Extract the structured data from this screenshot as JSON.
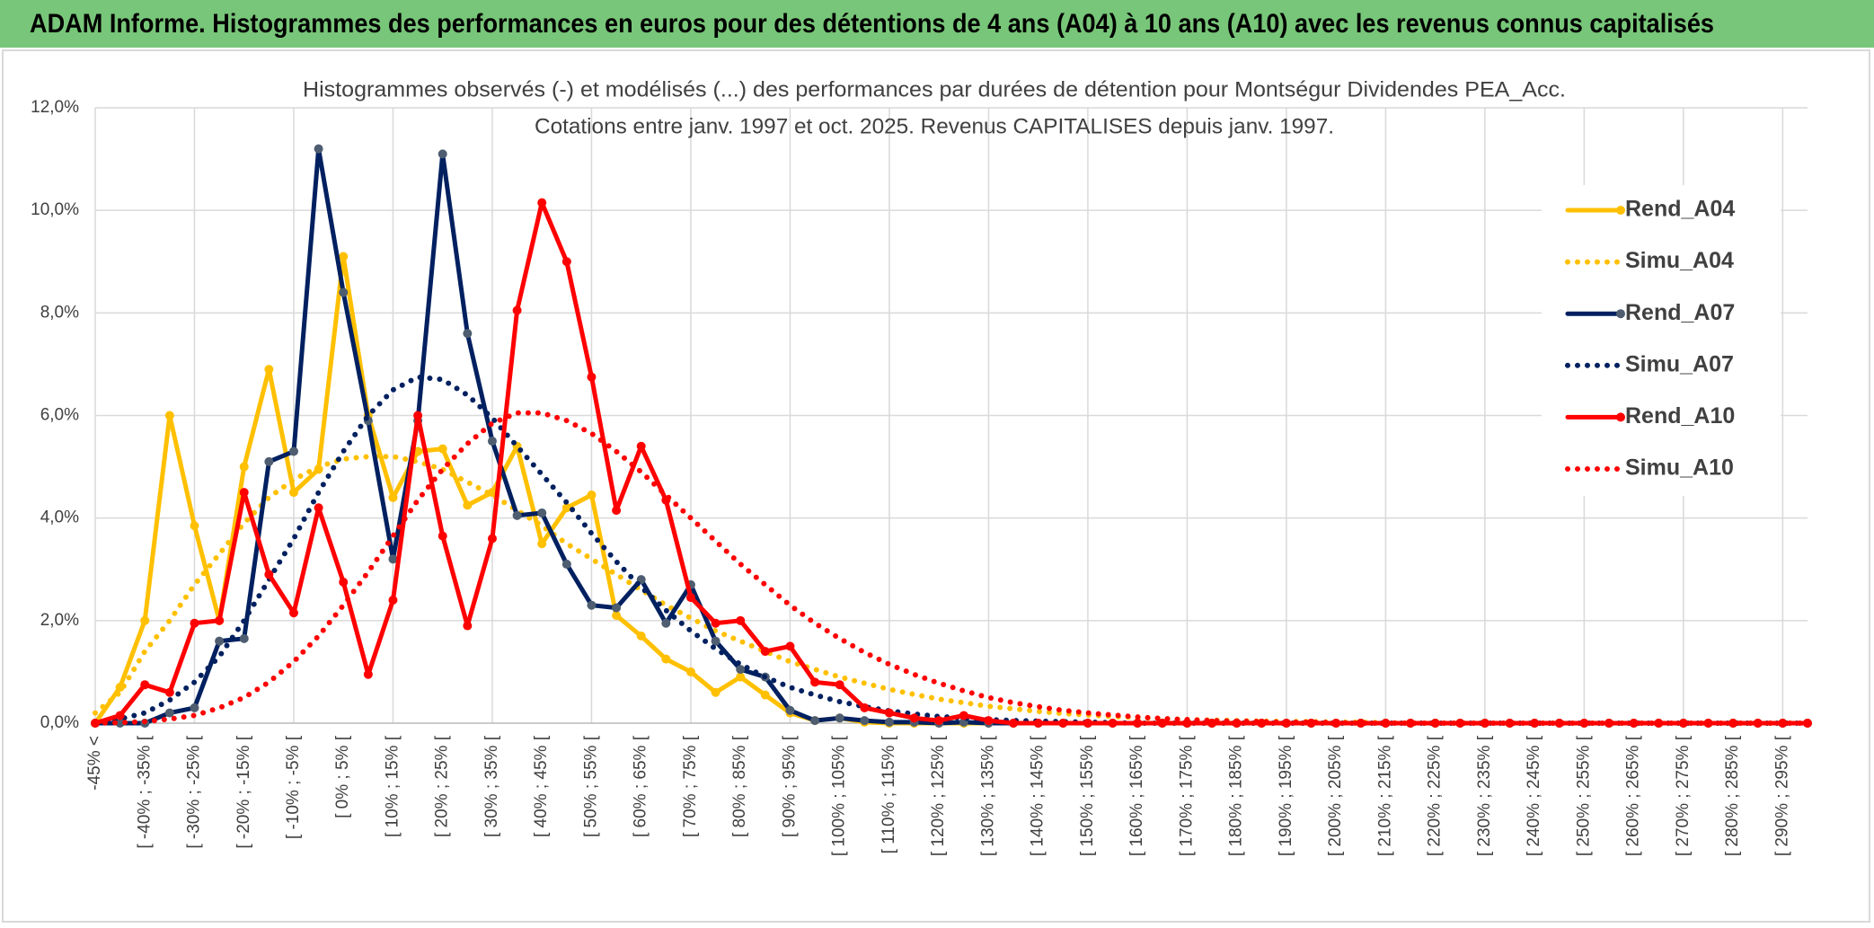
{
  "header": {
    "title": "ADAM Informe. Histogrammes des performances en euros pour des détentions de 4 ans (A04) à 10 ans (A10) avec les revenus connus capitalisés"
  },
  "chart_data": {
    "type": "line",
    "title": "Histogrammes observés (-) et modélisés (...) des performances par durées de détention pour Montségur Dividendes PEA_Acc.",
    "subtitle": "Cotations entre janv. 1997 et oct. 2025. Revenus CAPITALISES depuis janv. 1997.",
    "categories": [
      "-45% <",
      null,
      "[ -40% ; -35% [",
      null,
      "[ -30% ; -25% [",
      null,
      "[ -20% ; -15% [",
      null,
      "[ -10% ; -5% [",
      null,
      "[ 0% ; 5% [",
      null,
      "[ 10% ; 15% [",
      null,
      "[ 20% ; 25% [",
      null,
      "[ 30% ; 35% [",
      null,
      "[ 40% ; 45% [",
      null,
      "[ 50% ; 55% [",
      null,
      "[ 60% ; 65% [",
      null,
      "[ 70% ; 75% [",
      null,
      "[ 80% ; 85% [",
      null,
      "[ 90% ; 95% [",
      null,
      "[ 100% ; 105% [",
      null,
      "[ 110% ; 115% [",
      null,
      "[ 120% ; 125% [",
      null,
      "[ 130% ; 135% [",
      null,
      "[ 140% ; 145% [",
      null,
      "[ 150% ; 155% [",
      null,
      "[ 160% ; 165% [",
      null,
      "[ 170% ; 175% [",
      null,
      "[ 180% ; 185% [",
      null,
      "[ 190% ; 195% [",
      null,
      "[ 200% ; 205% [",
      null,
      "[ 210% ; 215% [",
      null,
      "[ 220% ; 225% [",
      null,
      "[ 230% ; 235% [",
      null,
      "[ 240% ; 245% [",
      null,
      "[ 250% ; 255% [",
      null,
      "[ 260% ; 265% [",
      null,
      "[ 270% ; 275% [",
      null,
      "[ 280% ; 285% [",
      null,
      "[ 290% ; 295% [",
      null
    ],
    "series": [
      {
        "name": "Rend_A04",
        "color": "#ffc000",
        "style": "solid",
        "marker": true,
        "marker_color": "#ffc000",
        "values": [
          0,
          0.7,
          2.0,
          6.0,
          3.85,
          2.0,
          5.0,
          6.9,
          4.5,
          4.95,
          9.1,
          6.0,
          4.4,
          5.3,
          5.35,
          4.25,
          4.5,
          5.4,
          3.5,
          4.2,
          4.45,
          2.1,
          1.7,
          1.25,
          1.0,
          0.6,
          0.9,
          0.55,
          0.2,
          0.05,
          0.1,
          0.02,
          0,
          0,
          0,
          0,
          0,
          0,
          0,
          0,
          0,
          0,
          0,
          0,
          0,
          0,
          0,
          0,
          0,
          0,
          0,
          0,
          0,
          0,
          0,
          0,
          0,
          0,
          0,
          0,
          0,
          0,
          0,
          0,
          0,
          0,
          0,
          0,
          0,
          0
        ]
      },
      {
        "name": "Simu_A04",
        "color": "#ffc000",
        "style": "dotted",
        "marker": false,
        "values": [
          0.2,
          0.6,
          1.4,
          2.0,
          2.7,
          3.3,
          3.9,
          4.4,
          4.75,
          5.0,
          5.15,
          5.2,
          5.2,
          5.1,
          4.95,
          4.7,
          4.45,
          4.15,
          3.85,
          3.5,
          3.2,
          2.9,
          2.6,
          2.3,
          2.05,
          1.8,
          1.6,
          1.4,
          1.2,
          1.05,
          0.9,
          0.78,
          0.66,
          0.56,
          0.47,
          0.4,
          0.33,
          0.28,
          0.23,
          0.19,
          0.16,
          0.13,
          0.11,
          0.09,
          0.07,
          0.06,
          0.05,
          0.04,
          0.03,
          0.03,
          0.02,
          0.02,
          0.01,
          0,
          0,
          0,
          0,
          0,
          0,
          0,
          0,
          0,
          0,
          0,
          0,
          0,
          0,
          0,
          0,
          0
        ]
      },
      {
        "name": "Rend_A07",
        "color": "#002060",
        "style": "solid",
        "marker": true,
        "marker_color": "#4e5d70",
        "values": [
          0,
          0,
          0,
          0.2,
          0.3,
          1.6,
          1.65,
          5.1,
          5.3,
          11.2,
          8.4,
          5.9,
          3.2,
          5.9,
          11.1,
          7.6,
          5.5,
          4.05,
          4.1,
          3.1,
          2.3,
          2.25,
          2.8,
          1.95,
          2.7,
          1.6,
          1.05,
          0.9,
          0.25,
          0.05,
          0.1,
          0.05,
          0.02,
          0.02,
          0,
          0.02,
          0,
          0,
          0,
          0,
          0,
          0,
          0,
          0,
          0,
          0,
          0,
          0,
          0,
          0,
          0,
          0,
          0,
          0,
          0,
          0,
          0,
          0,
          0,
          0,
          0,
          0,
          0,
          0,
          0,
          0,
          0,
          0,
          0,
          0
        ]
      },
      {
        "name": "Simu_A07",
        "color": "#002060",
        "style": "dotted",
        "marker": false,
        "values": [
          0.02,
          0.08,
          0.2,
          0.45,
          0.8,
          1.3,
          2.0,
          2.8,
          3.6,
          4.5,
          5.3,
          6.0,
          6.5,
          6.75,
          6.7,
          6.4,
          5.95,
          5.4,
          4.85,
          4.3,
          3.7,
          3.15,
          2.65,
          2.2,
          1.8,
          1.45,
          1.15,
          0.9,
          0.7,
          0.55,
          0.42,
          0.32,
          0.24,
          0.18,
          0.13,
          0.1,
          0.07,
          0.05,
          0.04,
          0.03,
          0.02,
          0.01,
          0,
          0,
          0,
          0,
          0,
          0,
          0,
          0,
          0,
          0,
          0,
          0,
          0,
          0,
          0,
          0,
          0,
          0,
          0,
          0,
          0,
          0,
          0,
          0,
          0,
          0,
          0,
          0
        ]
      },
      {
        "name": "Rend_A10",
        "color": "#ff0000",
        "style": "solid",
        "marker": true,
        "marker_color": "#ff0000",
        "values": [
          0,
          0.15,
          0.75,
          0.6,
          1.95,
          2.0,
          4.5,
          2.9,
          2.15,
          4.2,
          2.75,
          0.95,
          2.4,
          6.0,
          3.65,
          1.9,
          3.6,
          8.05,
          10.15,
          9.0,
          6.75,
          4.15,
          5.4,
          4.35,
          2.45,
          1.95,
          2.0,
          1.4,
          1.5,
          0.8,
          0.75,
          0.3,
          0.2,
          0.1,
          0.05,
          0.15,
          0.05,
          0,
          0,
          0,
          0,
          0,
          0,
          0,
          0,
          0,
          0,
          0,
          0,
          0,
          0,
          0,
          0,
          0,
          0,
          0,
          0,
          0,
          0,
          0,
          0,
          0,
          0,
          0,
          0,
          0,
          0,
          0,
          0,
          0
        ]
      },
      {
        "name": "Simu_A10",
        "color": "#ff0000",
        "style": "dotted",
        "marker": false,
        "values": [
          0,
          0.01,
          0.03,
          0.08,
          0.15,
          0.3,
          0.5,
          0.8,
          1.2,
          1.7,
          2.3,
          2.95,
          3.65,
          4.35,
          4.95,
          5.45,
          5.85,
          6.05,
          6.05,
          5.9,
          5.65,
          5.3,
          4.9,
          4.45,
          4.0,
          3.55,
          3.1,
          2.7,
          2.3,
          1.95,
          1.65,
          1.38,
          1.15,
          0.95,
          0.78,
          0.63,
          0.5,
          0.4,
          0.32,
          0.25,
          0.2,
          0.16,
          0.12,
          0.09,
          0.07,
          0.05,
          0.04,
          0.03,
          0.02,
          0.02,
          0.01,
          0,
          0,
          0,
          0,
          0,
          0,
          0,
          0,
          0,
          0,
          0,
          0,
          0,
          0,
          0,
          0,
          0,
          0,
          0
        ]
      }
    ],
    "ylim": [
      0,
      12
    ],
    "yticks": [
      {
        "value": 0,
        "label": "0,0%"
      },
      {
        "value": 2,
        "label": "2,0%"
      },
      {
        "value": 4,
        "label": "4,0%"
      },
      {
        "value": 6,
        "label": "6,0%"
      },
      {
        "value": 8,
        "label": "8,0%"
      },
      {
        "value": 10,
        "label": "10,0%"
      },
      {
        "value": 12,
        "label": "12,0%"
      }
    ],
    "grid": true,
    "legend": "right"
  }
}
